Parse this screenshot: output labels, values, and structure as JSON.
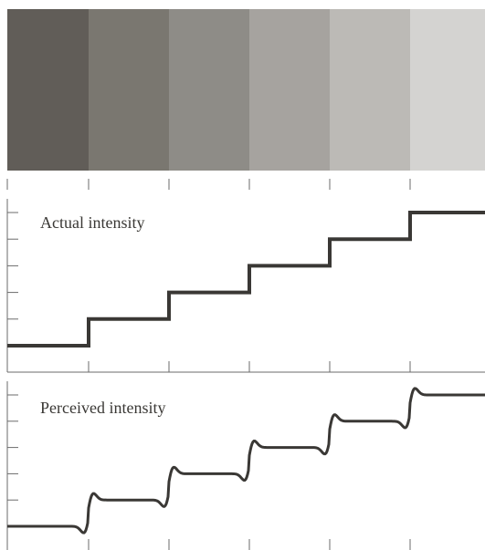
{
  "bands": {
    "colors": [
      "#615d58",
      "#7a7770",
      "#8e8c87",
      "#a6a39f",
      "#bcbab6",
      "#d4d3d1"
    ]
  },
  "actual": {
    "label": "Actual intensity",
    "levels": [
      1,
      2,
      3,
      4,
      5,
      6
    ]
  },
  "perceived": {
    "label": "Perceived intensity",
    "levels": [
      1,
      2,
      3,
      4,
      5,
      6
    ]
  },
  "colors": {
    "line": "#3a3835",
    "axis": "#6b6b6b"
  }
}
